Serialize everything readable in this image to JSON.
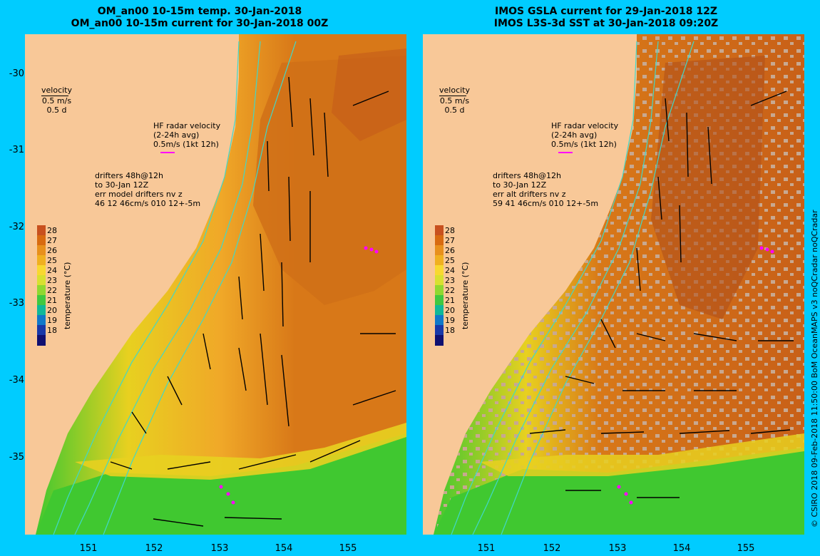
{
  "panels": [
    {
      "title1": "OM_an00 10-15m temp. 30-Jan-2018",
      "title2": "OM_an00 10-15m current for 30-Jan-2018 00Z",
      "velocity_label": "velocity",
      "velocity_scale": "0.5 m/s",
      "velocity_time": "0.5 d",
      "hf_title": "HF radar velocity",
      "hf_avg": "(2-24h avg)",
      "hf_scale": "0.5m/s (1kt 12h)",
      "drifters1": "drifters 48h@12h",
      "drifters2": "to 30-Jan 12Z",
      "drifters3": "err model drifters nv z",
      "drifters4": "46 12 46cm/s 010 12+-5m"
    },
    {
      "title1": "IMOS GSLA current for 29-Jan-2018 12Z",
      "title2": "IMOS L3S-3d SST at 30-Jan-2018 09:20Z",
      "velocity_label": "velocity",
      "velocity_scale": "0.5 m/s",
      "velocity_time": "0.5 d",
      "hf_title": "HF radar velocity",
      "hf_avg": "(2-24h avg)",
      "hf_scale": "0.5m/s (1kt 12h)",
      "drifters1": "drifters 48h@12h",
      "drifters2": "to 30-Jan 12Z",
      "drifters3": "err alt drifters nv z",
      "drifters4": "59 41 46cm/s 010 12+-5m"
    }
  ],
  "y_ticks": [
    "-30",
    "-31",
    "-32",
    "-33",
    "-34",
    "-35"
  ],
  "x_ticks": [
    "151",
    "152",
    "153",
    "154",
    "155"
  ],
  "colorbar": {
    "label": "temperature (°C)",
    "ticks": [
      "28",
      "27",
      "26",
      "25",
      "24",
      "23",
      "22",
      "21",
      "20",
      "19",
      "18"
    ],
    "colors": [
      "#c8501e",
      "#d86a10",
      "#e8901c",
      "#f0b020",
      "#f8d830",
      "#d8e030",
      "#90d830",
      "#40c840",
      "#10b898",
      "#1078c8",
      "#1838a8",
      "#101070"
    ]
  },
  "colors": {
    "background": "#00ccff",
    "land": "#f8c898",
    "warm": "#d87818",
    "hot": "#b85a1c",
    "mid": "#f0a828",
    "yellow": "#e8d020",
    "green": "#40c830",
    "cloud": "#c8a890",
    "isobath": "#40d8c8",
    "drifter": "#ff00ff"
  },
  "credit": "© CSIRO 2018   09-Feb-2018 11:50:00 BoM OceanMAPS v3 noQCradar noQCradar"
}
